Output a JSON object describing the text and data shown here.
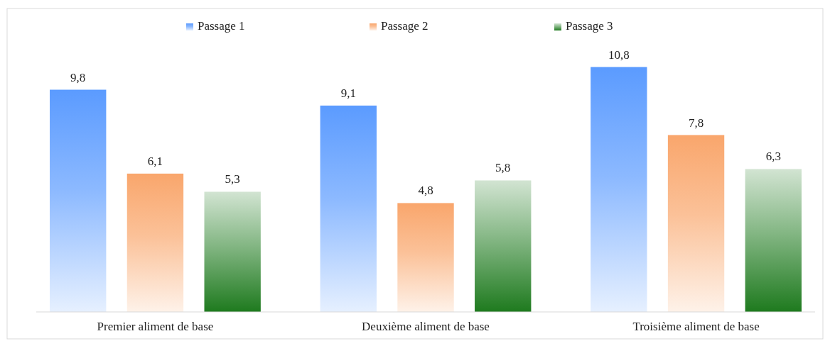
{
  "chart_data": {
    "type": "bar",
    "categories": [
      "Premier aliment de base",
      "Deuxième aliment de base",
      "Troisième aliment de base"
    ],
    "series": [
      {
        "name": "Passage 1",
        "color": "#5b9bff",
        "values": [
          9.8,
          9.1,
          10.8
        ],
        "value_labels": [
          "9,8",
          "9,1",
          "10,8"
        ]
      },
      {
        "name": "Passage 2",
        "color": "#f9a66c",
        "values": [
          6.1,
          4.8,
          7.8
        ],
        "value_labels": [
          "6,1",
          "4,8",
          "7,8"
        ]
      },
      {
        "name": "Passage 3",
        "color": "#1e7a1e",
        "values": [
          5.3,
          5.8,
          6.3
        ],
        "value_labels": [
          "5,3",
          "5,8",
          "6,3"
        ]
      }
    ],
    "legend": "top",
    "grid": false
  }
}
